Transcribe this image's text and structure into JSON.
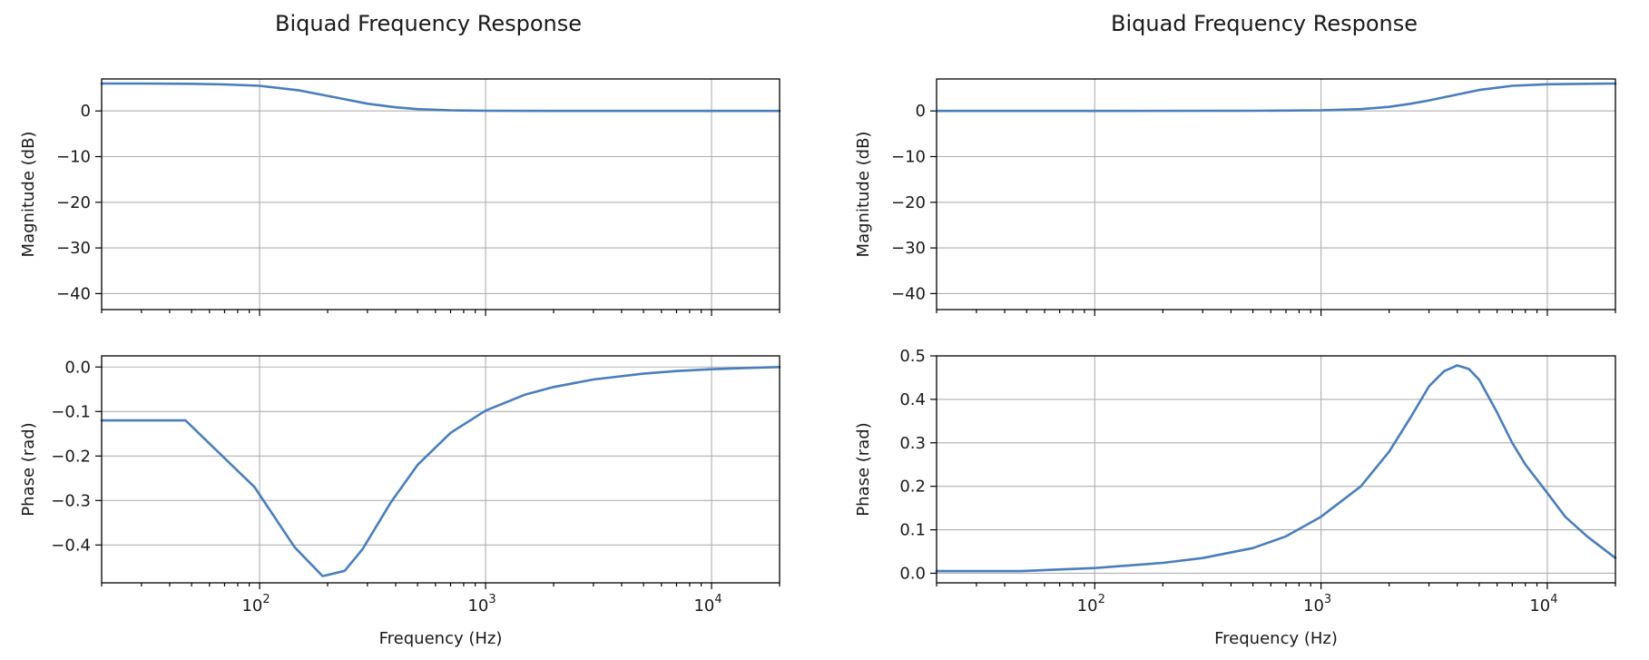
{
  "chart_data": [
    {
      "type": "line",
      "title": "Biquad Frequency Response",
      "panels": [
        {
          "ylabel": "Magnitude (dB)",
          "xlabel": "",
          "xscale": "log",
          "xlim": [
            20,
            20000
          ],
          "ylim": [
            -43.5,
            7
          ],
          "yticks": [
            0,
            -10,
            -20,
            -30,
            -40
          ],
          "ytick_labels": [
            "0",
            "−10",
            "−20",
            "−30",
            "−40"
          ],
          "grid": true,
          "series": [
            {
              "x": [
                20,
                30,
                50,
                70,
                100,
                150,
                200,
                300,
                400,
                500,
                700,
                1000,
                2000,
                5000,
                10000,
                20000
              ],
              "y": [
                6.0,
                6.0,
                5.95,
                5.8,
                5.5,
                4.5,
                3.3,
                1.6,
                0.8,
                0.4,
                0.15,
                0.05,
                0.0,
                0.0,
                0.0,
                0.0
              ]
            }
          ]
        },
        {
          "ylabel": "Phase (rad)",
          "xlabel": "Frequency (Hz)",
          "xscale": "log",
          "xlim": [
            20,
            20000
          ],
          "ylim": [
            -0.485,
            0.025
          ],
          "yticks": [
            0.0,
            -0.1,
            -0.2,
            -0.3,
            -0.4
          ],
          "ytick_labels": [
            "0.0",
            "−0.1",
            "−0.2",
            "−0.3",
            "−0.4"
          ],
          "xticks": [
            100,
            1000,
            10000
          ],
          "xtick_labels": [
            {
              "base": "10",
              "exp": "2"
            },
            {
              "base": "10",
              "exp": "3"
            },
            {
              "base": "10",
              "exp": "4"
            }
          ],
          "grid": true,
          "series": [
            {
              "x": [
                20,
                47,
                95,
                143,
                190,
                238,
                285,
                380,
                500,
                700,
                1000,
                1500,
                2000,
                3000,
                5000,
                7000,
                10000,
                15000,
                20000
              ],
              "y": [
                -0.12,
                -0.12,
                -0.27,
                -0.405,
                -0.47,
                -0.458,
                -0.41,
                -0.305,
                -0.22,
                -0.148,
                -0.098,
                -0.062,
                -0.045,
                -0.028,
                -0.015,
                -0.009,
                -0.005,
                -0.002,
                0.0
              ]
            }
          ]
        }
      ]
    },
    {
      "type": "line",
      "title": "Biquad Frequency Response",
      "panels": [
        {
          "ylabel": "Magnitude (dB)",
          "xlabel": "",
          "xscale": "log",
          "xlim": [
            20,
            20000
          ],
          "ylim": [
            -43.5,
            7
          ],
          "yticks": [
            0,
            -10,
            -20,
            -30,
            -40
          ],
          "ytick_labels": [
            "0",
            "−10",
            "−20",
            "−30",
            "−40"
          ],
          "grid": true,
          "series": [
            {
              "x": [
                20,
                100,
                500,
                1000,
                1500,
                2000,
                2500,
                3000,
                4000,
                5000,
                7000,
                10000,
                15000,
                20000
              ],
              "y": [
                0.0,
                0.0,
                0.05,
                0.15,
                0.4,
                0.9,
                1.6,
                2.3,
                3.6,
                4.6,
                5.5,
                5.85,
                5.95,
                6.0
              ]
            }
          ]
        },
        {
          "ylabel": "Phase (rad)",
          "xlabel": "Frequency (Hz)",
          "xscale": "log",
          "xlim": [
            20,
            20000
          ],
          "ylim": [
            -0.022,
            0.5
          ],
          "yticks": [
            0.0,
            0.1,
            0.2,
            0.3,
            0.4,
            0.5
          ],
          "ytick_labels": [
            "0.0",
            "0.1",
            "0.2",
            "0.3",
            "0.4",
            "0.5"
          ],
          "xticks": [
            100,
            1000,
            10000
          ],
          "xtick_labels": [
            {
              "base": "10",
              "exp": "2"
            },
            {
              "base": "10",
              "exp": "3"
            },
            {
              "base": "10",
              "exp": "4"
            }
          ],
          "grid": true,
          "series": [
            {
              "x": [
                20,
                47,
                100,
                200,
                300,
                500,
                700,
                1000,
                1500,
                2000,
                2500,
                3000,
                3500,
                4000,
                4500,
                5000,
                6000,
                7000,
                8000,
                10000,
                12000,
                15000,
                20000
              ],
              "y": [
                0.005,
                0.005,
                0.012,
                0.024,
                0.035,
                0.058,
                0.085,
                0.13,
                0.2,
                0.28,
                0.36,
                0.43,
                0.465,
                0.478,
                0.47,
                0.445,
                0.37,
                0.3,
                0.25,
                0.185,
                0.13,
                0.085,
                0.035
              ]
            }
          ]
        }
      ]
    }
  ]
}
